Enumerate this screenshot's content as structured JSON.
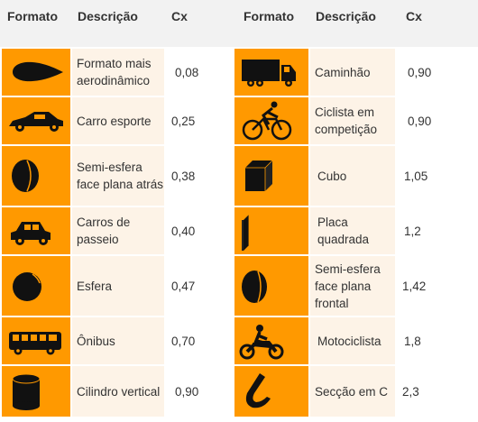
{
  "header": {
    "left": {
      "formato": "Formato",
      "descricao": "Descrição",
      "cx": "Cx"
    },
    "right": {
      "formato": "Formato",
      "descricao": "Descrição",
      "cx": "Cx"
    }
  },
  "rows_left": [
    {
      "icon": "teardrop-icon",
      "descricao": "Formato mais aerodinâmico",
      "cx": "0,08"
    },
    {
      "icon": "sports-car-icon",
      "descricao": "Carro esporte",
      "cx": "0,25"
    },
    {
      "icon": "hemisphere-flat-back-icon",
      "descricao": "Semi-esfera face plana atrás",
      "cx": "0,38"
    },
    {
      "icon": "passenger-car-icon",
      "descricao": "Carros de passeio",
      "cx": "0,40"
    },
    {
      "icon": "sphere-icon",
      "descricao": "Esfera",
      "cx": "0,47"
    },
    {
      "icon": "bus-icon",
      "descricao": "Ônibus",
      "cx": "0,70"
    },
    {
      "icon": "cylinder-icon",
      "descricao": "Cilindro vertical",
      "cx": "0,90"
    }
  ],
  "rows_right": [
    {
      "icon": "truck-icon",
      "descricao": "Caminhão",
      "cx": "0,90"
    },
    {
      "icon": "cyclist-icon",
      "descricao": "Ciclista em competição",
      "cx": "0,90"
    },
    {
      "icon": "cube-icon",
      "descricao": "Cubo",
      "cx": "1,05"
    },
    {
      "icon": "square-plate-icon",
      "descricao": "Placa quadrada",
      "cx": "1,2"
    },
    {
      "icon": "hemisphere-flat-front-icon",
      "descricao": "Semi-esfera face plana frontal",
      "cx": "1,42"
    },
    {
      "icon": "motorcyclist-icon",
      "descricao": "Motociclista",
      "cx": "1,8"
    },
    {
      "icon": "c-section-icon",
      "descricao": "Secção em C",
      "cx": "2,3"
    }
  ],
  "colors": {
    "icon_bg": "#ff9900",
    "desc_bg": "#fdf3e7",
    "header_bg": "#f2f2f2",
    "text": "#333333"
  }
}
